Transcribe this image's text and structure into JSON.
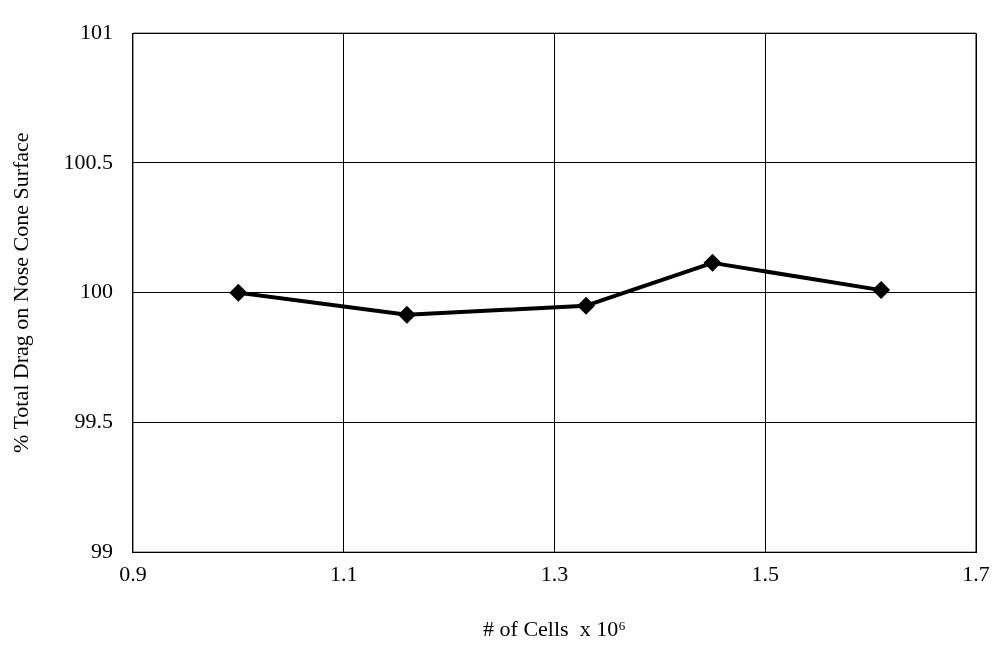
{
  "chart_data": {
    "type": "line",
    "xlabel": "# of Cells  x 10⁶",
    "ylabel": "% Total Drag on Nose Cone Surface",
    "x": [
      1.0,
      1.16,
      1.33,
      1.45,
      1.61
    ],
    "series": [
      {
        "color": "#000000",
        "values": [
          100.0,
          99.915,
          99.95,
          100.115,
          100.01
        ]
      }
    ],
    "xlim": [
      0.9,
      1.7
    ],
    "xticks": [
      0.9,
      1.1,
      1.3,
      1.5,
      1.7
    ],
    "ylim": [
      99,
      101
    ],
    "yticks": [
      99,
      99.5,
      100,
      100.5,
      101
    ],
    "grid": true,
    "legend": false,
    "marker": "diamond",
    "line_style": "solid"
  }
}
